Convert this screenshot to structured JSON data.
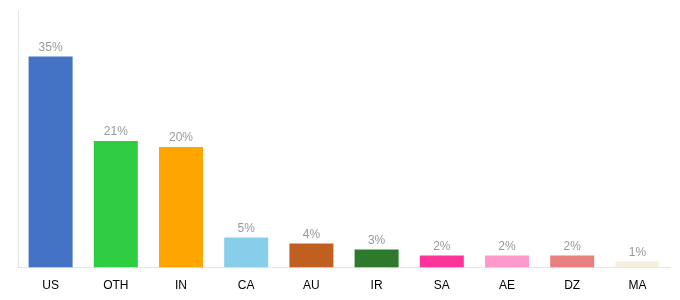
{
  "chart_data": {
    "type": "bar",
    "categories": [
      "US",
      "OTH",
      "IN",
      "CA",
      "AU",
      "IR",
      "SA",
      "AE",
      "DZ",
      "MA"
    ],
    "values": [
      35,
      21,
      20,
      5,
      4,
      3,
      2,
      2,
      2,
      1
    ],
    "value_labels": [
      "35%",
      "21%",
      "20%",
      "5%",
      "4%",
      "3%",
      "2%",
      "2%",
      "2%",
      "1%"
    ],
    "colors": [
      "#4472C4",
      "#2ECC40",
      "#FFA500",
      "#87CEEB",
      "#C06020",
      "#2D7A2D",
      "#FF3399",
      "#FF99CC",
      "#E88080",
      "#F5F0DC"
    ],
    "ylim": [
      0,
      42.7
    ],
    "grid": false,
    "data_labels": true,
    "tick_labels": "x"
  }
}
